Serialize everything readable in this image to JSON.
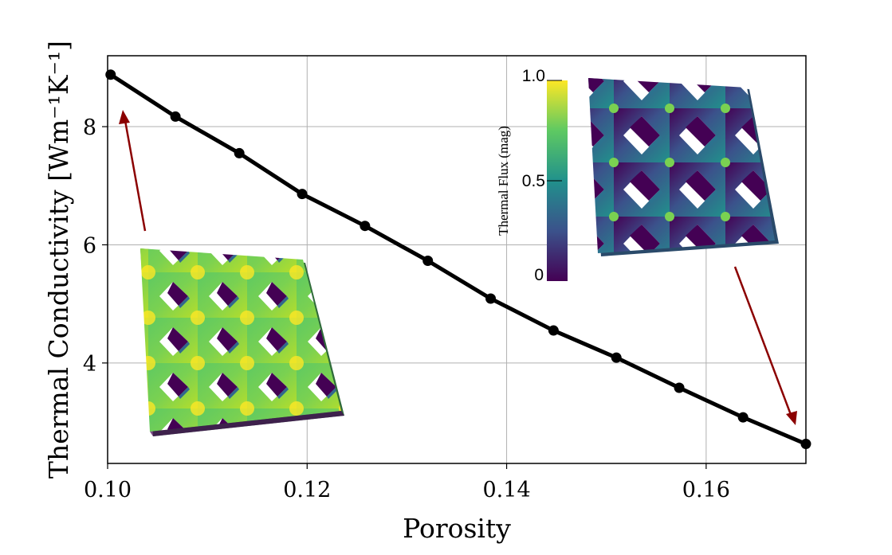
{
  "chart_data": {
    "type": "line",
    "xlabel": "Porosity",
    "ylabel": "Thermal Conductivity [Wm⁻¹K⁻¹]",
    "xlim": [
      0.1,
      0.17
    ],
    "ylim": [
      2.3,
      9.2
    ],
    "x_ticks": [
      "0.10",
      "0.12",
      "0.14",
      "0.16"
    ],
    "x_tick_values": [
      0.1,
      0.12,
      0.14,
      0.16
    ],
    "y_ticks": [
      "4",
      "6",
      "8"
    ],
    "y_tick_values": [
      4,
      6,
      8
    ],
    "grid": true,
    "series": [
      {
        "x": [
          0.1003,
          0.1068,
          0.1132,
          0.1195,
          0.1258,
          0.1321,
          0.1384,
          0.1447,
          0.151,
          0.1573,
          0.1637,
          0.17
        ],
        "y": [
          8.88,
          8.17,
          7.55,
          6.86,
          6.32,
          5.73,
          5.09,
          4.55,
          4.09,
          3.58,
          3.08,
          2.63
        ]
      }
    ],
    "colorbar": {
      "title": "Thermal Flux (mag)",
      "ticks": [
        "1.0",
        "0.5",
        "0"
      ],
      "tick_values": [
        1.0,
        0.5,
        0.0
      ],
      "colormap": "viridis"
    }
  },
  "colors": {
    "line": "#000000",
    "arrow": "#8b0000",
    "grid": "#b0b0b0",
    "viridis_low": "#440154",
    "viridis_mid": "#21918c",
    "viridis_high": "#fde725"
  }
}
